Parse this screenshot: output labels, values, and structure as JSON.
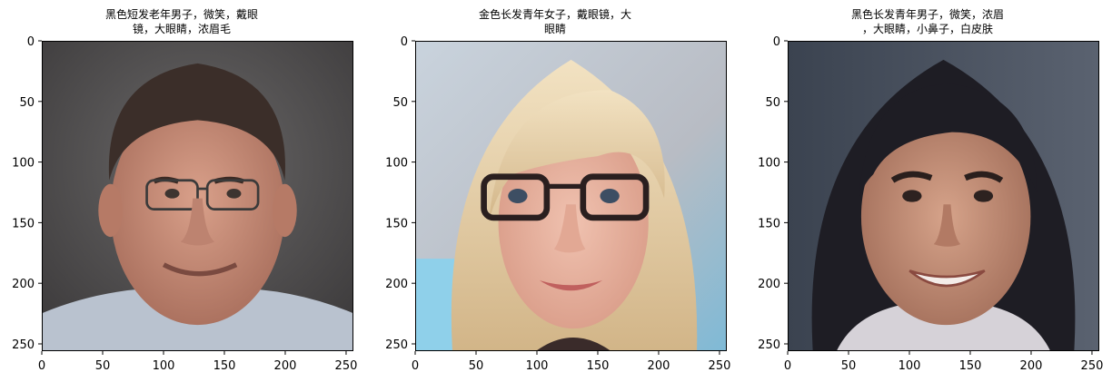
{
  "figure": {
    "panels": [
      {
        "title": "黑色短发老年男子，微笑，戴眼\n镜，大眼睛，浓眉毛",
        "image": "generated-face-older-man-dark-short-hair-glasses-smiling"
      },
      {
        "title": "金色长发青年女子，戴眼镜，大\n眼睛",
        "image": "generated-face-young-woman-blonde-long-hair-glasses"
      },
      {
        "title": "黑色长发青年男子，微笑，浓眉\n，大眼睛，小鼻子，白皮肤",
        "image": "generated-face-young-person-dark-long-hair-smiling"
      }
    ],
    "x_ticks": [
      "0",
      "50",
      "100",
      "150",
      "200",
      "250"
    ],
    "y_ticks": [
      "0",
      "50",
      "100",
      "150",
      "200",
      "250"
    ],
    "axis_range": [
      0,
      256
    ]
  }
}
